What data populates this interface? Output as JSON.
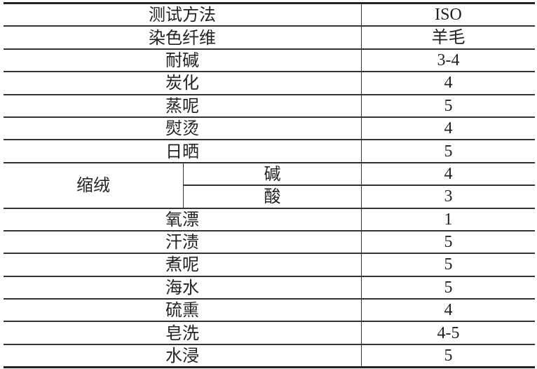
{
  "header": {
    "method": "测试方法",
    "standard": "ISO"
  },
  "fiber": {
    "label": "染色纤维",
    "value": "羊毛"
  },
  "rows_top": [
    {
      "label": "耐碱",
      "value": "3-4"
    },
    {
      "label": "炭化",
      "value": "4"
    },
    {
      "label": "蒸呢",
      "value": "5"
    },
    {
      "label": "熨烫",
      "value": "4"
    },
    {
      "label": "日晒",
      "value": "5"
    }
  ],
  "milling": {
    "label": "缩绒",
    "subrows": [
      {
        "label": "碱",
        "value": "4"
      },
      {
        "label": "酸",
        "value": "3"
      }
    ]
  },
  "rows_bottom": [
    {
      "label": "氧漂",
      "value": "1"
    },
    {
      "label": "汗渍",
      "value": "5"
    },
    {
      "label": "煮呢",
      "value": "5"
    },
    {
      "label": "海水",
      "value": "5"
    },
    {
      "label": "硫熏",
      "value": "4"
    },
    {
      "label": "皂洗",
      "value": "4-5"
    },
    {
      "label": "水浸",
      "value": "5"
    }
  ]
}
